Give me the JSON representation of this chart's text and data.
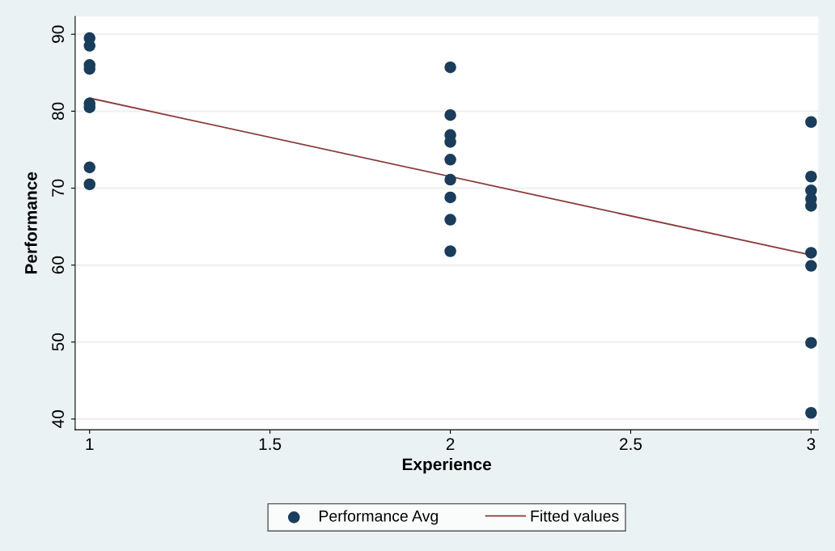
{
  "chart_data": {
    "type": "scatter",
    "xlabel": "Experience",
    "ylabel": "Performance",
    "xlim": [
      0.96,
      3.02
    ],
    "xticks": [
      {
        "value": 1,
        "label": "1"
      },
      1.5,
      {
        "value": 2,
        "label": "2"
      },
      2.5,
      {
        "value": 3,
        "label": "3"
      }
    ],
    "ylim": [
      38.6,
      92.3
    ],
    "yticks": [
      40,
      50,
      60,
      70,
      80,
      90
    ],
    "grid": "y",
    "legend": "bottom",
    "marker": "circle",
    "series": [
      {
        "name": "Performance Avg",
        "color": "#1a3d5c",
        "x": [
          1,
          1,
          1,
          1,
          1,
          1,
          1,
          1,
          2,
          2,
          2,
          2,
          2,
          2,
          2,
          2,
          2,
          3,
          3,
          3,
          3,
          3,
          3,
          3,
          3,
          3
        ],
        "values": [
          89.5,
          88.5,
          86,
          85.5,
          81,
          80.5,
          72.7,
          70.5,
          85.7,
          79.5,
          76.9,
          76.0,
          73.7,
          71.1,
          68.8,
          65.9,
          61.8,
          78.6,
          71.5,
          69.7,
          68.6,
          67.7,
          61.6,
          59.9,
          49.9,
          40.8
        ]
      },
      {
        "name": "Fitted values",
        "type": "line",
        "color": "#8b3a3a",
        "x": [
          1,
          3
        ],
        "values": [
          81.7,
          61.3
        ],
        "marker": "none"
      }
    ]
  }
}
